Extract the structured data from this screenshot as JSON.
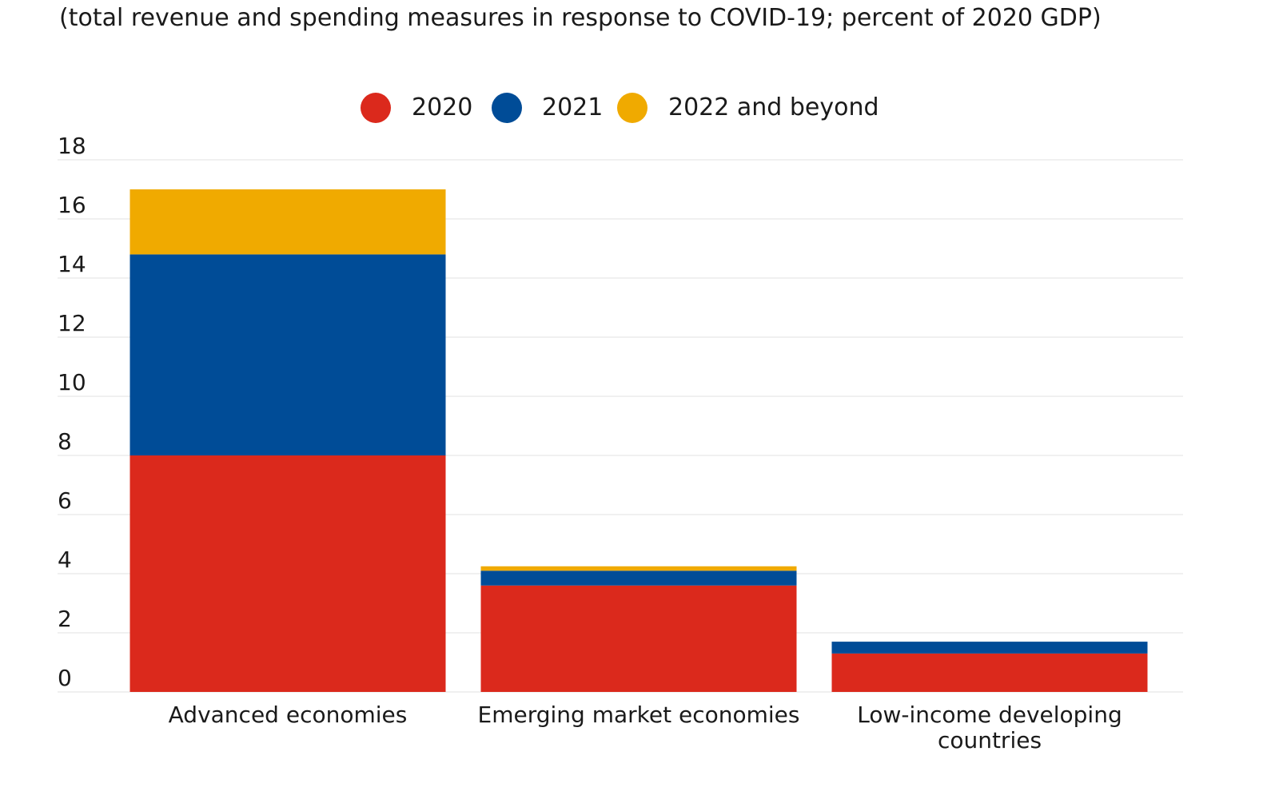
{
  "chart_data": {
    "type": "bar",
    "stacked": true,
    "title": "",
    "subtitle": "(total revenue and spending measures in response to COVID-19; percent of 2020 GDP)",
    "xlabel": "",
    "ylabel": "",
    "categories": [
      [
        "Advanced economies"
      ],
      [
        "Emerging market economies"
      ],
      [
        "Low-income developing",
        "countries"
      ]
    ],
    "series": [
      {
        "name": "2020",
        "color": "#db291c",
        "values": [
          8.0,
          3.6,
          1.3
        ]
      },
      {
        "name": "2021",
        "color": "#004c97",
        "values": [
          6.8,
          0.5,
          0.4
        ]
      },
      {
        "name": "2022 and beyond",
        "color": "#f0aa00",
        "values": [
          2.2,
          0.15,
          0.0
        ]
      }
    ],
    "ylim": [
      0,
      18
    ],
    "yticks": [
      "0",
      "2",
      "4",
      "6",
      "8",
      "10",
      "12",
      "14",
      "16",
      "18"
    ],
    "grid": true,
    "legend_position": "top-center"
  }
}
